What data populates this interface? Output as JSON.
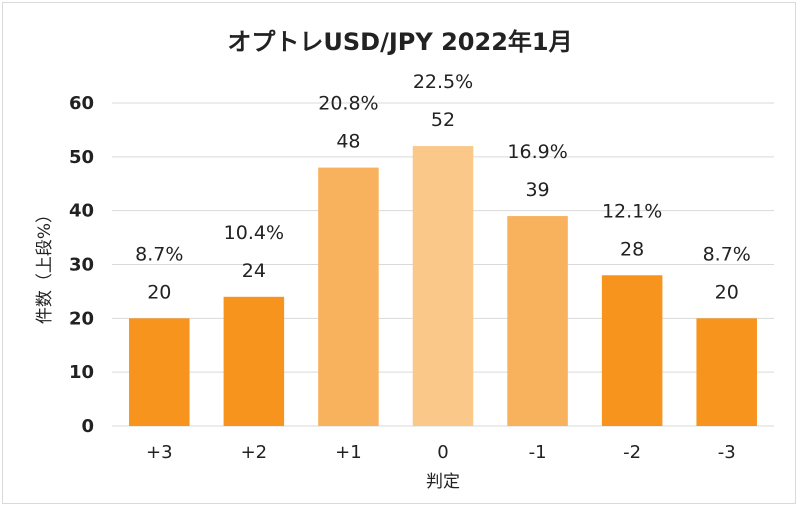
{
  "chart_data": {
    "type": "bar",
    "title": "オプトレUSD/JPY 2022年1月",
    "xlabel": "判定",
    "ylabel": "件数（上段%）",
    "categories": [
      "+3",
      "+2",
      "+1",
      "0",
      "-1",
      "-2",
      "-3"
    ],
    "values": [
      20,
      24,
      48,
      52,
      39,
      28,
      20
    ],
    "percent_labels": [
      "8.7%",
      "10.4%",
      "20.8%",
      "22.5%",
      "16.9%",
      "12.1%",
      "8.7%"
    ],
    "bar_colors": [
      "#F7941D",
      "#F7941D",
      "#F8B25E",
      "#FAC98A",
      "#F8B25E",
      "#F7941D",
      "#F7941D"
    ],
    "ylim": [
      0,
      60
    ],
    "yticks": [
      0,
      10,
      20,
      30,
      40,
      50,
      60
    ],
    "grid": true,
    "legend": "none"
  }
}
